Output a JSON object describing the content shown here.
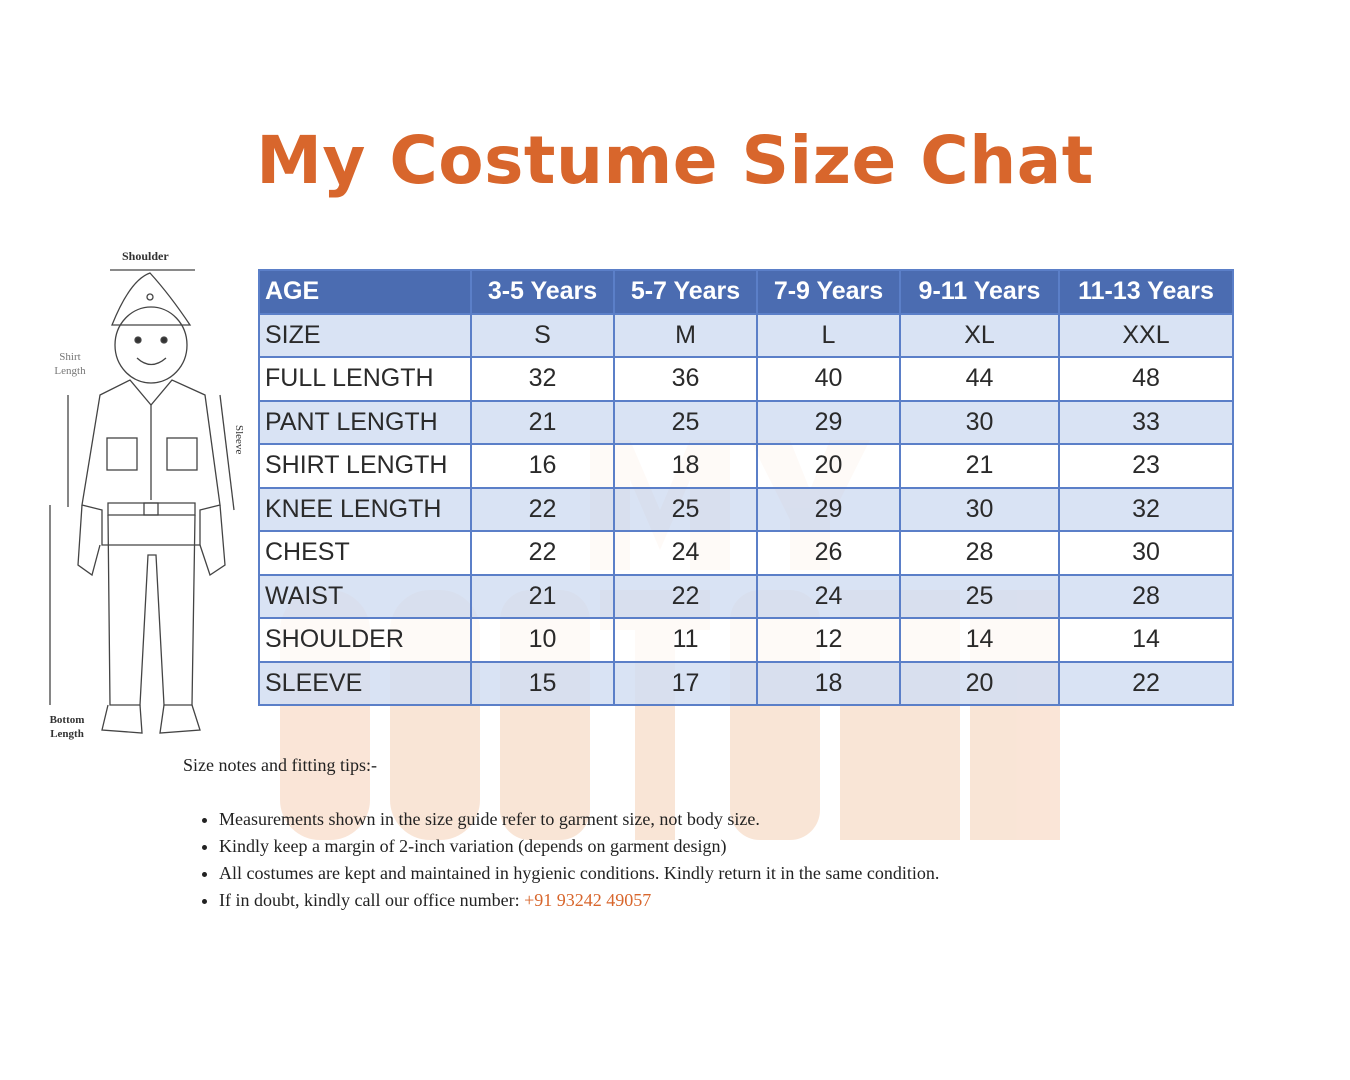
{
  "title": "My Costume Size Chat",
  "watermark": {
    "line1": "MY",
    "line2": "COSTUME"
  },
  "colors": {
    "accent": "#d8662c",
    "header_bg": "#3c5faa",
    "row_alt": "#d2def2",
    "border": "#5b7fc8"
  },
  "figure": {
    "labels": {
      "shoulder": "Shoulder",
      "shirt_length": "Shirt Length",
      "sleeve": "Sleeve",
      "bottom_length": "Bottom Length"
    }
  },
  "table": {
    "header": [
      "AGE",
      "3-5 Years",
      "5-7 Years",
      "7-9 Years",
      "9-11 Years",
      "11-13 Years"
    ],
    "rows": [
      {
        "label": "SIZE",
        "values": [
          "S",
          "M",
          "L",
          "XL",
          "XXL"
        ]
      },
      {
        "label": "FULL LENGTH",
        "values": [
          "32",
          "36",
          "40",
          "44",
          "48"
        ]
      },
      {
        "label": "PANT LENGTH",
        "values": [
          "21",
          "25",
          "29",
          "30",
          "33"
        ]
      },
      {
        "label": "SHIRT LENGTH",
        "values": [
          "16",
          "18",
          "20",
          "21",
          "23"
        ]
      },
      {
        "label": "KNEE LENGTH",
        "values": [
          "22",
          "25",
          "29",
          "30",
          "32"
        ]
      },
      {
        "label": "CHEST",
        "values": [
          "22",
          "24",
          "26",
          "28",
          "30"
        ]
      },
      {
        "label": "WAIST",
        "values": [
          "21",
          "22",
          "24",
          "25",
          "28"
        ]
      },
      {
        "label": "SHOULDER",
        "values": [
          "10",
          "11",
          "12",
          "14",
          "14"
        ]
      },
      {
        "label": "SLEEVE",
        "values": [
          "15",
          "17",
          "18",
          "20",
          "22"
        ]
      }
    ]
  },
  "notes": {
    "heading": "Size notes and fitting tips:-",
    "items": [
      "Measurements shown in the size guide refer to garment size, not body size.",
      "Kindly keep a margin of 2-inch variation (depends on garment design)",
      "All costumes are kept and maintained in hygienic conditions. Kindly return it in the same condition."
    ],
    "last_item_text": "If in doubt, kindly call our office number:",
    "phone": "+91 93242 49057"
  }
}
